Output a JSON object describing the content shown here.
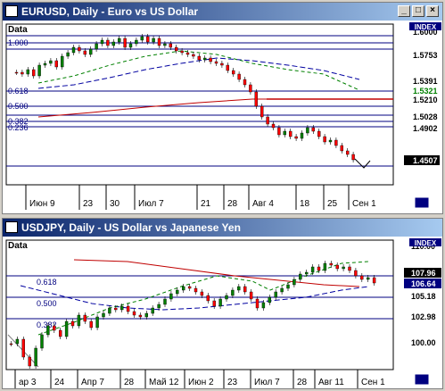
{
  "window1": {
    "title": "EURUSD, Daily - Euro vs US Dollar",
    "data_label": "Data",
    "index_label": "INDEX",
    "price_labels": [
      "1.6000",
      "1.5753",
      "1.5391",
      "1.5321",
      "1.5210",
      "1.5028",
      "1.4902",
      "1.4507"
    ],
    "fib_labels": [
      "1.000",
      "0.618",
      "0.500",
      "0.382",
      "0.236"
    ],
    "x_labels": [
      "Июн 9",
      "23",
      "30",
      "Июл 7",
      "21",
      "28",
      "Авг 4",
      "18",
      "25",
      "Сен 1"
    ]
  },
  "window2": {
    "title": "USDJPY, Daily - US Dollar vs Japanese Yen",
    "data_label": "Data",
    "index_label": "INDEX",
    "price_labels": [
      "110.00",
      "107.96",
      "106.64",
      "105.18",
      "102.98",
      "100.00"
    ],
    "fib_labels": [
      "0.618",
      "0.500",
      "0.382"
    ],
    "x_labels": [
      "ар 3",
      "24",
      "Апр 7",
      "28",
      "Май 12",
      "Июн 2",
      "23",
      "Июл 7",
      "28",
      "Авг 11",
      "Сен 1"
    ]
  },
  "colors": {
    "candle_up": "#008000",
    "candle_down": "#ff0000",
    "ma_fast": "#008000",
    "ma_slow": "#0000a0",
    "ma_long": "#c00000",
    "fib_line": "#000080",
    "current_price_bg": "#000000"
  },
  "icons": {
    "title_icon": "chart-window-icon",
    "minimize": "minimize-icon",
    "maximize": "maximize-icon",
    "close": "close-icon"
  }
}
